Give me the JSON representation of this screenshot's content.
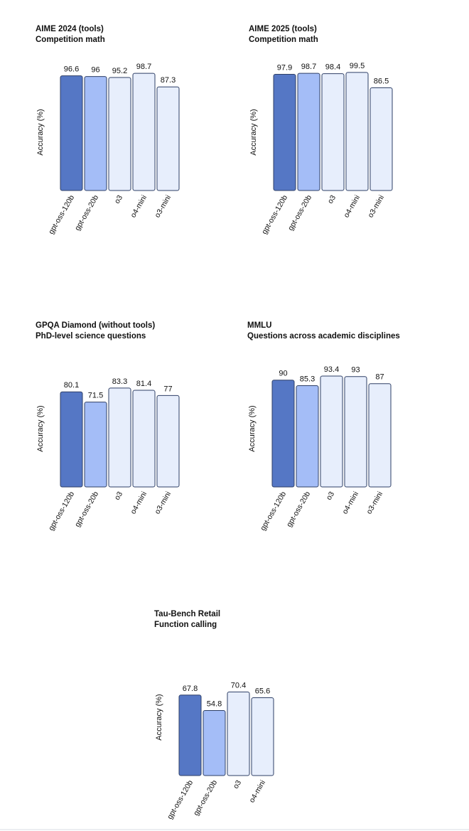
{
  "style": {
    "colors": [
      "#5577c5",
      "#a4bdf7",
      "#e7eefc",
      "#e7eefc",
      "#e7eefc"
    ],
    "stroke": "#2e3f66"
  },
  "chart_data": [
    {
      "type": "bar",
      "title": "AIME 2024 (tools)",
      "subtitle": "Competition math",
      "ylabel": "Accuracy (%)",
      "categories": [
        "gpt-oss-120b",
        "gpt-oss-20b",
        "o3",
        "o4-mini",
        "o3-mini"
      ],
      "values": [
        96.6,
        96,
        95.2,
        98.7,
        87.3
      ],
      "value_labels": [
        "96.6",
        "96",
        "95.2",
        "98.7",
        "87.3"
      ],
      "ylim": [
        0,
        100
      ]
    },
    {
      "type": "bar",
      "title": "AIME 2025 (tools)",
      "subtitle": "Competition math",
      "ylabel": "Accuracy (%)",
      "categories": [
        "gpt-oss-120b",
        "gpt-oss-20b",
        "o3",
        "o4-mini",
        "o3-mini"
      ],
      "values": [
        97.9,
        98.7,
        98.4,
        99.5,
        86.5
      ],
      "value_labels": [
        "97.9",
        "98.7",
        "98.4",
        "99.5",
        "86.5"
      ],
      "ylim": [
        0,
        100
      ]
    },
    {
      "type": "bar",
      "title": "GPQA Diamond (without tools)",
      "subtitle": "PhD-level science questions",
      "ylabel": "Accuracy (%)",
      "categories": [
        "gpt-oss-120b",
        "gpt-oss-20b",
        "o3",
        "o4-mini",
        "o3-mini"
      ],
      "values": [
        80.1,
        71.5,
        83.3,
        81.4,
        77
      ],
      "value_labels": [
        "80.1",
        "71.5",
        "83.3",
        "81.4",
        "77"
      ],
      "ylim": [
        0,
        100
      ]
    },
    {
      "type": "bar",
      "title": "MMLU",
      "subtitle": "Questions across academic disciplines",
      "ylabel": "Accuracy (%)",
      "categories": [
        "gpt-oss-120b",
        "gpt-oss-20b",
        "o3",
        "o4-mini",
        "o3-mini"
      ],
      "values": [
        90,
        85.3,
        93.4,
        93,
        87
      ],
      "value_labels": [
        "90",
        "85.3",
        "93.4",
        "93",
        "87"
      ],
      "ylim": [
        0,
        100
      ]
    },
    {
      "type": "bar",
      "title": "Tau-Bench Retail",
      "subtitle": "Function calling",
      "ylabel": "Accuracy (%)",
      "categories": [
        "gpt-oss-120b",
        "gpt-oss-20b",
        "o3",
        "o4-mini"
      ],
      "values": [
        67.8,
        54.8,
        70.4,
        65.6
      ],
      "value_labels": [
        "67.8",
        "54.8",
        "70.4",
        "65.6"
      ],
      "ylim": [
        0,
        100
      ]
    }
  ]
}
